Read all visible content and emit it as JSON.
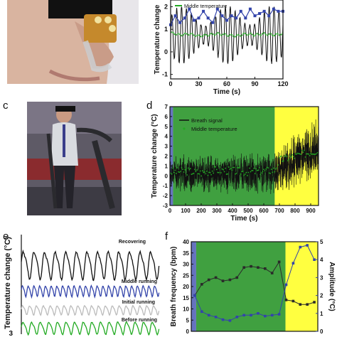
{
  "panel_labels": {
    "c": "c",
    "d": "d",
    "e": "e",
    "f": "f"
  },
  "colors": {
    "signal": "#111111",
    "middle": "#22aa22",
    "blue": "#3344aa",
    "green_region": "#9fd08f",
    "yellow_region": "#fbe8a8",
    "grey": "#bbbbbb"
  },
  "chart_data": [
    {
      "id": "b",
      "type": "line",
      "xlabel": "Time (s)",
      "ylabel": "Temperature change",
      "xlim": [
        0,
        120
      ],
      "ylim": [
        -1.2,
        2.3
      ],
      "xticks": [
        "0",
        "30",
        "60",
        "90",
        "120"
      ],
      "yticks": [
        "-1",
        "0",
        "1",
        "2"
      ],
      "legend": [
        "Middle temperature"
      ],
      "breath": {
        "period_s": 5.2,
        "center": 0.75,
        "amplitude": 1.05
      },
      "series": [
        {
          "name": "Middle temperature",
          "x": [
            0,
            10,
            20,
            30,
            40,
            50,
            60,
            70,
            80,
            90,
            100,
            110,
            120
          ],
          "values": [
            0.85,
            0.75,
            0.8,
            0.7,
            0.75,
            0.8,
            0.75,
            0.7,
            0.8,
            0.75,
            0.8,
            0.75,
            0.8
          ]
        },
        {
          "name": "",
          "x": [
            0,
            5,
            10,
            15,
            20,
            25,
            30,
            35,
            40,
            45,
            50,
            55,
            60,
            65,
            70,
            75,
            80,
            85,
            90,
            95,
            100,
            105,
            110,
            115,
            120
          ],
          "values": [
            1.2,
            1.6,
            1.3,
            1.5,
            1.9,
            1.4,
            1.5,
            1.8,
            1.5,
            1.3,
            1.9,
            1.6,
            1.4,
            1.6,
            1.5,
            1.8,
            1.5,
            1.9,
            1.6,
            1.7,
            1.8,
            1.6,
            1.9,
            1.8,
            1.8
          ]
        }
      ]
    },
    {
      "id": "d",
      "type": "line",
      "xlabel": "Time (s)",
      "ylabel": "Temperature change (°C)",
      "xlim": [
        0,
        950
      ],
      "ylim": [
        -3,
        7
      ],
      "xticks": [
        "0",
        "100",
        "200",
        "300",
        "400",
        "500",
        "600",
        "700",
        "800",
        "900"
      ],
      "yticks": [
        "-3",
        "-2",
        "-1",
        "0",
        "1",
        "2",
        "3",
        "4",
        "5",
        "6",
        "7"
      ],
      "regions": [
        {
          "from": 0,
          "to": 20,
          "color": "blue"
        },
        {
          "from": 20,
          "to": 670,
          "color": "green"
        },
        {
          "from": 670,
          "to": 950,
          "color": "yellow"
        }
      ],
      "series": [
        {
          "name": "Breath signal",
          "envelope": [
            {
              "x": 0,
              "low": -1.8,
              "high": 2.2
            },
            {
              "x": 670,
              "low": -2.2,
              "high": 2.6
            },
            {
              "x": 950,
              "low": -0.5,
              "high": 6.5
            }
          ]
        },
        {
          "name": "Middle temperature",
          "x": [
            0,
            100,
            200,
            300,
            400,
            500,
            600,
            670,
            700,
            800,
            900,
            950
          ],
          "values": [
            0.4,
            0.5,
            0.3,
            0.6,
            0.5,
            0.4,
            0.5,
            0.6,
            1.6,
            2.0,
            2.4,
            2.6
          ]
        }
      ]
    },
    {
      "id": "e",
      "type": "line",
      "ylabel": "Temperature change (°C)",
      "ytick_visible": "3",
      "series": [
        {
          "name": "Recovering",
          "color": "signal",
          "cycles": 13,
          "amplitude": 1.0
        },
        {
          "name": "Middle running",
          "color": "blue",
          "cycles": 24,
          "amplitude": 0.45
        },
        {
          "name": "Initial running",
          "color": "grey",
          "cycles": 20,
          "amplitude": 0.35
        },
        {
          "name": "Before running",
          "color": "middle",
          "cycles": 16,
          "amplitude": 0.45
        }
      ]
    },
    {
      "id": "f",
      "type": "line",
      "ylabel": "Breath frequency (bpm)",
      "y2label": "Amplitude (°C)",
      "ylim": [
        0,
        40
      ],
      "y2lim": [
        0,
        5
      ],
      "yticks": [
        "0",
        "5",
        "10",
        "15",
        "20",
        "25",
        "30",
        "35",
        "40"
      ],
      "y2ticks": [
        "0",
        "1",
        "2",
        "3",
        "4",
        "5"
      ],
      "regions": [
        {
          "from": 0,
          "to": 0.7,
          "color": "blue"
        },
        {
          "from": 0.7,
          "to": 13.4,
          "color": "green"
        },
        {
          "from": 13.4,
          "to": 18,
          "color": "yellow"
        }
      ],
      "series": [
        {
          "name": "Breath frequency",
          "axis": "left",
          "x": [
            0,
            1,
            2,
            3,
            4,
            5,
            6,
            7,
            8,
            9,
            10,
            11,
            12,
            13,
            14,
            15,
            16,
            17
          ],
          "values": [
            16,
            21,
            23,
            24,
            22.5,
            23,
            24,
            28.5,
            29,
            28.5,
            28,
            26,
            31,
            14,
            13.5,
            12,
            12,
            13
          ]
        },
        {
          "name": "Amplitude",
          "axis": "right",
          "x": [
            0,
            1,
            2,
            3,
            4,
            5,
            6,
            7,
            8,
            9,
            10,
            11,
            12,
            13,
            14,
            15,
            16,
            17
          ],
          "values": [
            2.0,
            1.1,
            0.9,
            0.8,
            0.65,
            0.6,
            0.8,
            0.9,
            0.9,
            1.0,
            0.85,
            0.9,
            0.95,
            2.6,
            3.8,
            4.7,
            4.8,
            4.0
          ]
        }
      ]
    }
  ]
}
